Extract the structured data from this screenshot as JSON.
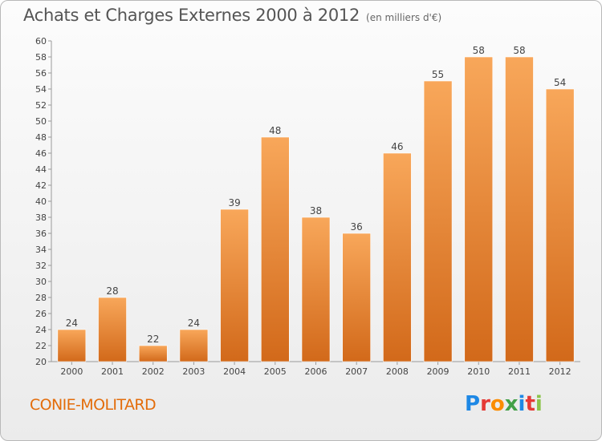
{
  "title": "Achats et Charges Externes 2000 à 2012",
  "subtitle": "(en milliers d'€)",
  "commune": "CONIE-MOLITARD",
  "logo": {
    "letters": [
      "P",
      "r",
      "o",
      "x",
      "i",
      "t",
      "i"
    ],
    "colors": [
      "#1e88e5",
      "#e53935",
      "#fb8c00",
      "#43a047",
      "#1e88e5",
      "#e53935",
      "#8bc34a"
    ]
  },
  "colors": {
    "bar_top": "#f8a75a",
    "bar_bottom": "#d2691a",
    "label": "#444444",
    "commune": "#e36c0a"
  },
  "chart_data": {
    "type": "bar",
    "title": "Achats et Charges Externes 2000 à 2012",
    "subtitle": "(en milliers d'€)",
    "categories": [
      "2000",
      "2001",
      "2002",
      "2003",
      "2004",
      "2005",
      "2006",
      "2007",
      "2008",
      "2009",
      "2010",
      "2011",
      "2012"
    ],
    "values": [
      24,
      28,
      22,
      24,
      39,
      48,
      38,
      36,
      46,
      55,
      58,
      58,
      54
    ],
    "ylim": [
      20,
      60
    ],
    "ytick_step": 2,
    "grid": false,
    "data_labels": true
  }
}
